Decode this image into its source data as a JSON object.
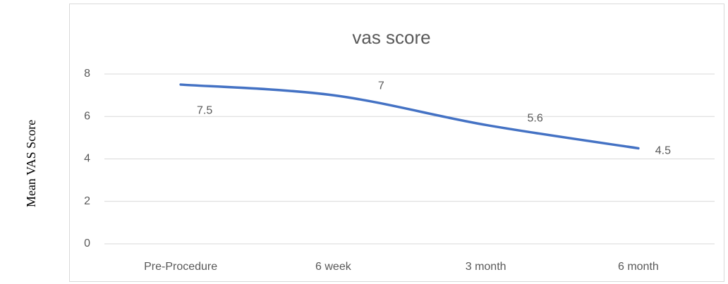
{
  "chart_data": {
    "type": "line",
    "title": "vas score",
    "y_label": "Mean VAS Score",
    "categories": [
      "Pre-Procedure",
      "6 week",
      "3 month",
      "6 month"
    ],
    "values": [
      7.5,
      7,
      5.6,
      4.5
    ],
    "color": "#4472c4",
    "ylim": [
      0,
      8
    ],
    "yticks": [
      0,
      2,
      4,
      6,
      8
    ],
    "grid": true
  }
}
